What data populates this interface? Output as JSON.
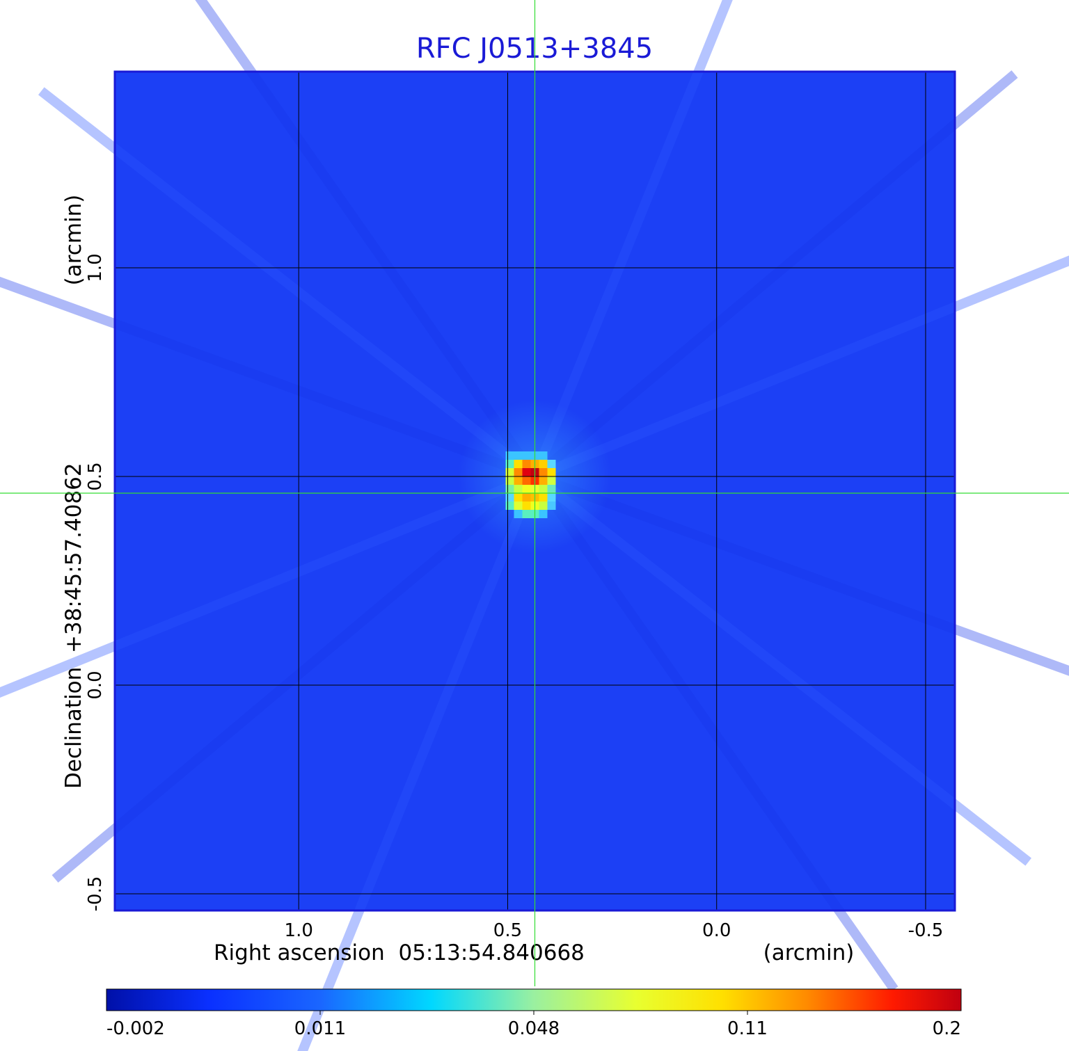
{
  "chart_data": {
    "type": "heatmap",
    "title": "RFC J0513+3845",
    "xlabel": "Right ascension  05:13:54.840668",
    "xunit": "(arcmin)",
    "ylabel": "Declination  +38:45:57.40862",
    "yunit": "(arcmin)",
    "x_ticks": [
      "1.0",
      "0.5",
      "0.0",
      "-0.5"
    ],
    "x_tick_values": [
      1.0,
      0.5,
      0.0,
      -0.5
    ],
    "y_ticks": [
      "1.0",
      "0.5",
      "0.0",
      "-0.5"
    ],
    "y_tick_values": [
      1.0,
      0.5,
      0.0,
      -0.5
    ],
    "xlim": [
      1.44,
      -0.57
    ],
    "ylim": [
      -0.54,
      1.47
    ],
    "grid": true,
    "crosshair": {
      "x": 0.435,
      "y": 0.46
    },
    "colorbar": {
      "labels": [
        "-0.002",
        "0.011",
        "0.048",
        "0.11",
        "0.2"
      ],
      "values": [
        -0.002,
        0.011,
        0.048,
        0.11,
        0.2
      ]
    },
    "source": {
      "x": 0.435,
      "y": 0.5,
      "peak": 0.2
    },
    "colors": {
      "background_field": "#1c40f5",
      "frame": "#1a1ad6",
      "crosshair": "#33dd33"
    }
  }
}
